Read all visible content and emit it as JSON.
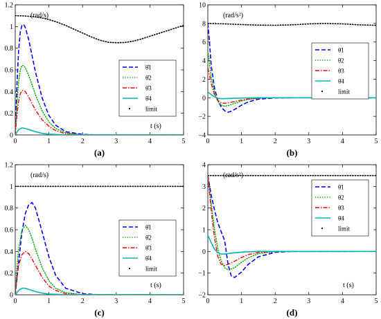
{
  "chart_data": [
    {
      "type": "line",
      "caption": "(a)",
      "unit": "(rad/s)",
      "xlabel": "t (s)",
      "xlim": [
        0,
        5
      ],
      "ylim": [
        0,
        1.2
      ],
      "xticks": [
        0,
        1,
        2,
        3,
        4,
        5
      ],
      "yticks": [
        0,
        0.2,
        0.4,
        0.6,
        0.8,
        1,
        1.2
      ],
      "ytick_labels": [
        "0",
        "0.2",
        "0.4",
        "0.6",
        "0.8",
        "1",
        "1.2"
      ],
      "legend_position": "right",
      "series": [
        {
          "name": "θ̇1",
          "style": "dash",
          "color": "#0000ff",
          "x": [
            0,
            0.05,
            0.1,
            0.15,
            0.2,
            0.25,
            0.3,
            0.4,
            0.5,
            0.6,
            0.8,
            1.0,
            1.2,
            1.5,
            2.0,
            2.5,
            5
          ],
          "y": [
            0,
            0.45,
            0.78,
            0.95,
            1.01,
            1.02,
            0.99,
            0.88,
            0.73,
            0.58,
            0.34,
            0.18,
            0.09,
            0.03,
            0.005,
            0,
            0
          ]
        },
        {
          "name": "θ̇2",
          "style": "dot",
          "color": "#00aa00",
          "x": [
            0,
            0.05,
            0.1,
            0.15,
            0.2,
            0.25,
            0.3,
            0.4,
            0.5,
            0.6,
            0.8,
            1.0,
            1.2,
            1.5,
            2.0,
            5
          ],
          "y": [
            0,
            0.28,
            0.49,
            0.6,
            0.64,
            0.64,
            0.62,
            0.55,
            0.46,
            0.37,
            0.22,
            0.12,
            0.06,
            0.02,
            0,
            0
          ]
        },
        {
          "name": "θ̇3",
          "style": "dashdot",
          "color": "#ff0000",
          "x": [
            0,
            0.05,
            0.1,
            0.15,
            0.2,
            0.25,
            0.3,
            0.4,
            0.5,
            0.6,
            0.8,
            1.0,
            1.2,
            1.5,
            2.0,
            5
          ],
          "y": [
            0,
            0.18,
            0.31,
            0.38,
            0.41,
            0.41,
            0.4,
            0.35,
            0.29,
            0.23,
            0.14,
            0.08,
            0.04,
            0.01,
            0,
            0
          ]
        },
        {
          "name": "θ̇4",
          "style": "solid",
          "color": "#00b3b3",
          "x": [
            0,
            0.1,
            0.2,
            0.3,
            0.4,
            0.6,
            0.8,
            1.0,
            1.5,
            5
          ],
          "y": [
            0,
            0.05,
            0.065,
            0.06,
            0.05,
            0.03,
            0.015,
            0.007,
            0.001,
            0
          ]
        },
        {
          "name": "limit",
          "style": "dotted-black",
          "color": "#000000",
          "x": [
            0,
            0.25,
            0.5,
            0.75,
            1,
            1.25,
            1.5,
            1.75,
            2,
            2.25,
            2.5,
            2.75,
            3,
            3.25,
            3.5,
            3.75,
            4,
            4.25,
            4.5,
            4.75,
            5
          ],
          "y": [
            1.1,
            1.098,
            1.092,
            1.082,
            1.065,
            1.04,
            1.01,
            0.975,
            0.94,
            0.905,
            0.875,
            0.855,
            0.85,
            0.853,
            0.865,
            0.885,
            0.91,
            0.935,
            0.96,
            0.985,
            1.01
          ]
        }
      ]
    },
    {
      "type": "line",
      "caption": "(b)",
      "unit": "(rad/s²)",
      "xlabel": "",
      "xlim": [
        0,
        5
      ],
      "ylim": [
        -4,
        10
      ],
      "xticks": [
        0,
        1,
        2,
        3,
        4,
        5
      ],
      "yticks": [
        -4,
        -2,
        0,
        2,
        4,
        6,
        8,
        10
      ],
      "ytick_labels": [
        "−4",
        "−2",
        "0",
        "2",
        "4",
        "6",
        "8",
        "10"
      ],
      "legend_position": "right",
      "series": [
        {
          "name": "θ̈1",
          "style": "dash",
          "color": "#0000ff",
          "x": [
            0,
            0.05,
            0.1,
            0.2,
            0.3,
            0.4,
            0.5,
            0.6,
            0.7,
            0.8,
            1.0,
            1.2,
            1.5,
            2.0,
            2.5,
            5
          ],
          "y": [
            8.0,
            6.0,
            3.5,
            1.0,
            -0.3,
            -1.0,
            -1.4,
            -1.55,
            -1.45,
            -1.25,
            -0.8,
            -0.45,
            -0.15,
            -0.02,
            0,
            0
          ]
        },
        {
          "name": "θ̈2",
          "style": "dot",
          "color": "#00aa00",
          "x": [
            0,
            0.05,
            0.1,
            0.2,
            0.3,
            0.4,
            0.5,
            0.6,
            0.8,
            1.0,
            1.2,
            1.5,
            2.0,
            5
          ],
          "y": [
            5.0,
            3.8,
            2.2,
            0.5,
            -0.4,
            -0.8,
            -0.9,
            -0.85,
            -0.6,
            -0.35,
            -0.18,
            -0.05,
            0,
            0
          ]
        },
        {
          "name": "θ̈3",
          "style": "dashdot",
          "color": "#ff0000",
          "x": [
            0,
            0.05,
            0.1,
            0.2,
            0.3,
            0.4,
            0.5,
            0.6,
            0.8,
            1.0,
            1.2,
            1.5,
            2.0,
            5
          ],
          "y": [
            3.2,
            2.5,
            1.5,
            0.3,
            -0.3,
            -0.55,
            -0.6,
            -0.55,
            -0.4,
            -0.25,
            -0.12,
            -0.04,
            0,
            0
          ]
        },
        {
          "name": "θ̈4",
          "style": "solid",
          "color": "#00b3b3",
          "x": [
            0,
            0.1,
            0.2,
            0.3,
            0.4,
            0.5,
            0.7,
            1.0,
            1.5,
            5
          ],
          "y": [
            0.6,
            0.35,
            0.1,
            -0.05,
            -0.1,
            -0.1,
            -0.07,
            -0.03,
            0,
            0
          ]
        },
        {
          "name": "limit",
          "style": "dotted-black",
          "color": "#000000",
          "x": [
            0,
            0.5,
            1,
            1.5,
            2,
            2.5,
            3,
            3.5,
            4,
            4.5,
            5
          ],
          "y": [
            8.0,
            7.95,
            7.88,
            7.82,
            7.8,
            7.85,
            7.95,
            8.0,
            7.95,
            7.85,
            7.8
          ]
        }
      ]
    },
    {
      "type": "line",
      "caption": "(c)",
      "unit": "(rad/s)",
      "xlabel": "t (s)",
      "xlim": [
        0,
        5
      ],
      "ylim": [
        0,
        1.2
      ],
      "xticks": [
        0,
        1,
        2,
        3,
        4,
        5
      ],
      "yticks": [
        0,
        0.2,
        0.4,
        0.6,
        0.8,
        1,
        1.2
      ],
      "ytick_labels": [
        "0",
        "0.2",
        "0.4",
        "0.6",
        "0.8",
        "1",
        "1.2"
      ],
      "legend_position": "right",
      "series": [
        {
          "name": "θ̇1",
          "style": "dash",
          "color": "#0000ff",
          "x": [
            0,
            0.1,
            0.2,
            0.3,
            0.4,
            0.5,
            0.6,
            0.8,
            1.0,
            1.2,
            1.5,
            2.0,
            2.5,
            5
          ],
          "y": [
            0,
            0.3,
            0.58,
            0.75,
            0.83,
            0.85,
            0.8,
            0.58,
            0.35,
            0.18,
            0.06,
            0.01,
            0,
            0
          ]
        },
        {
          "name": "θ̇2",
          "style": "dot",
          "color": "#00aa00",
          "x": [
            0,
            0.05,
            0.1,
            0.2,
            0.3,
            0.4,
            0.5,
            0.6,
            0.8,
            1.0,
            1.2,
            1.5,
            2.0,
            5
          ],
          "y": [
            0,
            0.25,
            0.42,
            0.6,
            0.64,
            0.6,
            0.52,
            0.42,
            0.25,
            0.13,
            0.06,
            0.02,
            0,
            0
          ]
        },
        {
          "name": "θ̇3",
          "style": "dashdot",
          "color": "#ff0000",
          "x": [
            0,
            0.05,
            0.1,
            0.2,
            0.3,
            0.4,
            0.5,
            0.6,
            0.8,
            1.0,
            1.2,
            1.5,
            2.0,
            5
          ],
          "y": [
            0,
            0.15,
            0.27,
            0.37,
            0.4,
            0.38,
            0.33,
            0.27,
            0.16,
            0.08,
            0.04,
            0.01,
            0,
            0
          ]
        },
        {
          "name": "θ̇4",
          "style": "solid",
          "color": "#00b3b3",
          "x": [
            0,
            0.1,
            0.2,
            0.3,
            0.4,
            0.6,
            0.8,
            1.0,
            1.5,
            5
          ],
          "y": [
            0,
            0.04,
            0.06,
            0.06,
            0.05,
            0.03,
            0.015,
            0.007,
            0.001,
            0
          ]
        },
        {
          "name": "limit",
          "style": "dotted-black",
          "color": "#000000",
          "x": [
            0,
            5
          ],
          "y": [
            1.0,
            1.0
          ]
        }
      ]
    },
    {
      "type": "line",
      "caption": "(d)",
      "unit": "(rad/s²)",
      "xlabel": "t (s)",
      "xlim": [
        0,
        5
      ],
      "ylim": [
        -2,
        4
      ],
      "xticks": [
        0,
        1,
        2,
        3,
        4,
        5
      ],
      "yticks": [
        -2,
        -1,
        0,
        1,
        2,
        3,
        4
      ],
      "ytick_labels": [
        "−2",
        "−1",
        "0",
        "1",
        "2",
        "3",
        "4"
      ],
      "legend_position": "right",
      "series": [
        {
          "name": "θ̈1",
          "style": "dash",
          "color": "#0000ff",
          "x": [
            0,
            0.1,
            0.2,
            0.3,
            0.4,
            0.5,
            0.6,
            0.7,
            0.8,
            1.0,
            1.2,
            1.5,
            2.0,
            2.5,
            5
          ],
          "y": [
            3.5,
            2.6,
            1.9,
            1.3,
            0.9,
            0.5,
            -0.6,
            -1.15,
            -1.2,
            -0.95,
            -0.6,
            -0.25,
            -0.04,
            0,
            0
          ]
        },
        {
          "name": "θ̈2",
          "style": "dot",
          "color": "#00aa00",
          "x": [
            0,
            0.1,
            0.2,
            0.3,
            0.4,
            0.5,
            0.6,
            0.8,
            1.0,
            1.2,
            1.5,
            2.0,
            5
          ],
          "y": [
            3.5,
            2.2,
            1.0,
            0.1,
            -0.45,
            -0.75,
            -0.85,
            -0.75,
            -0.5,
            -0.3,
            -0.1,
            -0.01,
            0
          ]
        },
        {
          "name": "θ̈3",
          "style": "dashdot",
          "color": "#ff0000",
          "x": [
            0,
            0.1,
            0.2,
            0.3,
            0.4,
            0.5,
            0.6,
            0.8,
            1.0,
            1.2,
            1.5,
            2.0,
            5
          ],
          "y": [
            3.5,
            1.9,
            0.6,
            -0.25,
            -0.6,
            -0.65,
            -0.6,
            -0.45,
            -0.28,
            -0.15,
            -0.05,
            0,
            0
          ]
        },
        {
          "name": "θ̈4",
          "style": "solid",
          "color": "#00b3b3",
          "x": [
            0,
            0.1,
            0.2,
            0.3,
            0.4,
            0.5,
            0.7,
            1.0,
            1.5,
            5
          ],
          "y": [
            0.75,
            0.4,
            0.1,
            -0.06,
            -0.12,
            -0.12,
            -0.08,
            -0.03,
            0,
            0
          ]
        },
        {
          "name": "limit",
          "style": "dotted-black",
          "color": "#000000",
          "x": [
            0,
            5
          ],
          "y": [
            3.5,
            3.5
          ]
        }
      ]
    }
  ]
}
